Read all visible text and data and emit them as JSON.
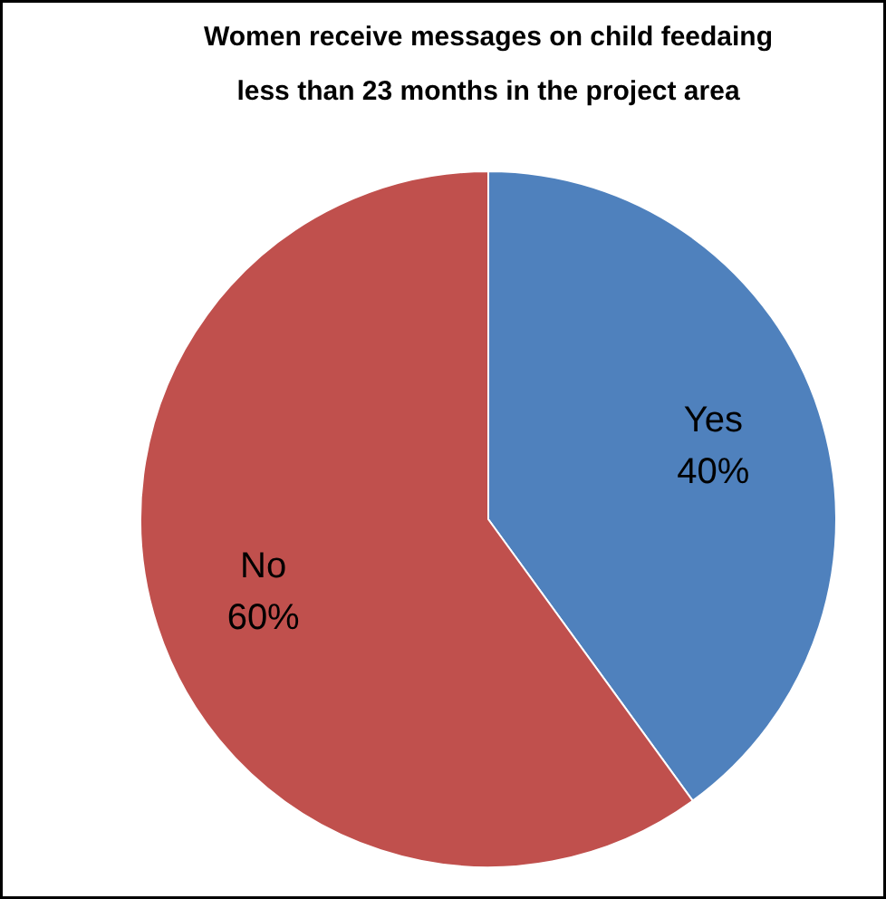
{
  "chart_data": {
    "type": "pie",
    "title": "Women receive messages on child feedaing\nless than 23 months in the project area",
    "categories": [
      "Yes",
      "No"
    ],
    "values": [
      40,
      60
    ],
    "colors": [
      "#4f81bd",
      "#c0504d"
    ],
    "value_labels": [
      "40%",
      "60%"
    ],
    "legend": false
  }
}
